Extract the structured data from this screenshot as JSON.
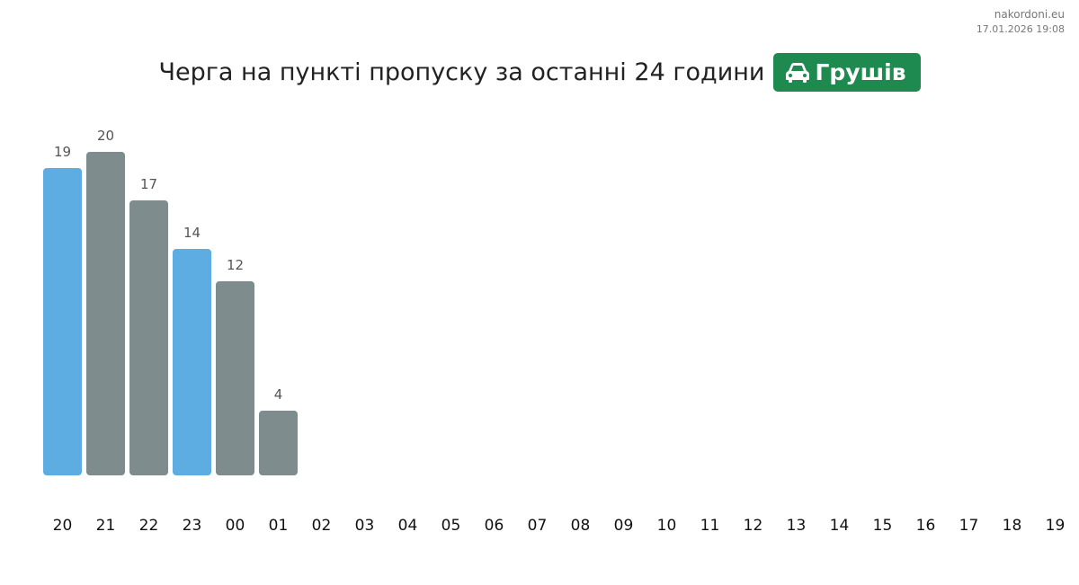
{
  "header": {
    "site": "nakordoni.eu",
    "timestamp": "17.01.2026 19:08",
    "title": "Черга на пункті пропуску за останні 24 години",
    "badge": {
      "label": "Грушів",
      "icon": "car-icon",
      "color": "#1e8a4f"
    }
  },
  "chart_data": {
    "type": "bar",
    "title": "Черга на пункті пропуску за останні 24 години",
    "xlabel": "",
    "ylabel": "",
    "ylim": [
      0,
      20
    ],
    "grid": false,
    "legend": "none",
    "categories": [
      "20",
      "21",
      "22",
      "23",
      "00",
      "01",
      "02",
      "03",
      "04",
      "05",
      "06",
      "07",
      "08",
      "09",
      "10",
      "11",
      "12",
      "13",
      "14",
      "15",
      "16",
      "17",
      "18",
      "19"
    ],
    "values": [
      19,
      20,
      17,
      14,
      12,
      4,
      null,
      null,
      null,
      null,
      null,
      null,
      null,
      null,
      null,
      null,
      null,
      null,
      null,
      null,
      null,
      null,
      null,
      null
    ],
    "colors": [
      "#5dade2",
      "#7f8c8d",
      "#7f8c8d",
      "#5dade2",
      "#7f8c8d",
      "#7f8c8d"
    ],
    "label_color": "#555555",
    "tick_color": "#111111"
  }
}
